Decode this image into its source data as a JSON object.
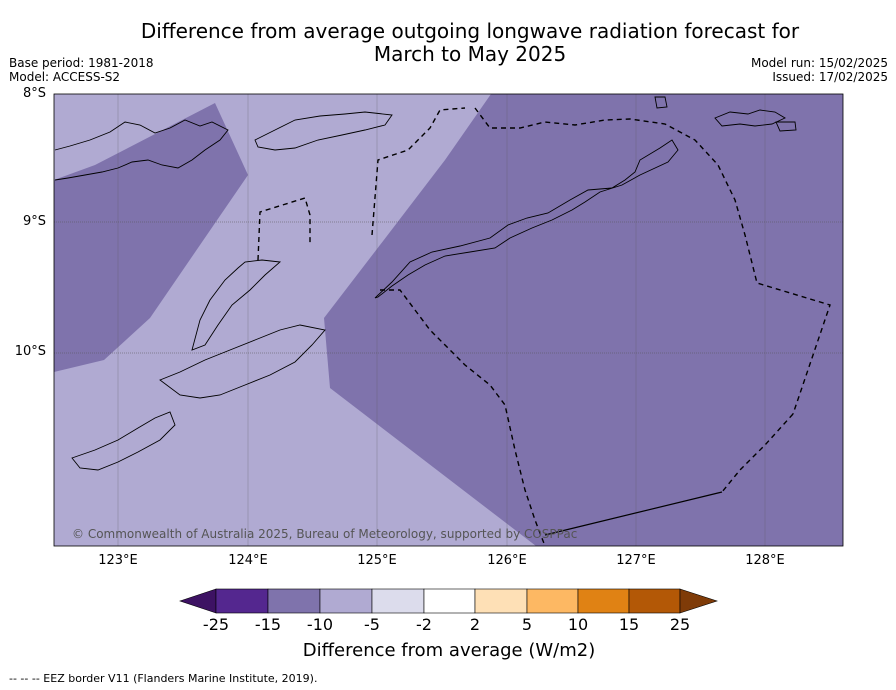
{
  "title_line1": "Difference from average outgoing longwave radiation forecast for",
  "title_line2": "March to May 2025",
  "meta": {
    "base_period": "Base period: 1981-2018",
    "model": "Model: ACCESS-S2",
    "model_run": "Model run: 15/02/2025",
    "issued": "Issued: 17/02/2025"
  },
  "map": {
    "lat_labels": [
      "8°S",
      "9°S",
      "10°S"
    ],
    "lon_labels": [
      "123°E",
      "124°E",
      "125°E",
      "126°E",
      "127°E",
      "128°E"
    ],
    "copyright": "© Commonwealth of Australia 2025, Bureau of Meteorology, supported by COSPPac",
    "fill_colors": {
      "band_neg10_neg5": "#b0aad2",
      "band_neg15_neg10": "#7f73ac"
    },
    "eez_line_style": "dashed"
  },
  "colorbar": {
    "ticks": [
      "-25",
      "-15",
      "-10",
      "-5",
      "-2",
      "2",
      "5",
      "10",
      "15",
      "25"
    ],
    "colors": [
      "#3d1263",
      "#54278f",
      "#7f73ac",
      "#b0aad2",
      "#dcdcec",
      "#ffffff",
      "#fee0b6",
      "#fdb863",
      "#e08214",
      "#b35806",
      "#7f3b08"
    ],
    "label": "Difference from average (W/m2)"
  },
  "footer": "--  --  -- EEZ border V11 (Flanders Marine Institute, 2019)."
}
